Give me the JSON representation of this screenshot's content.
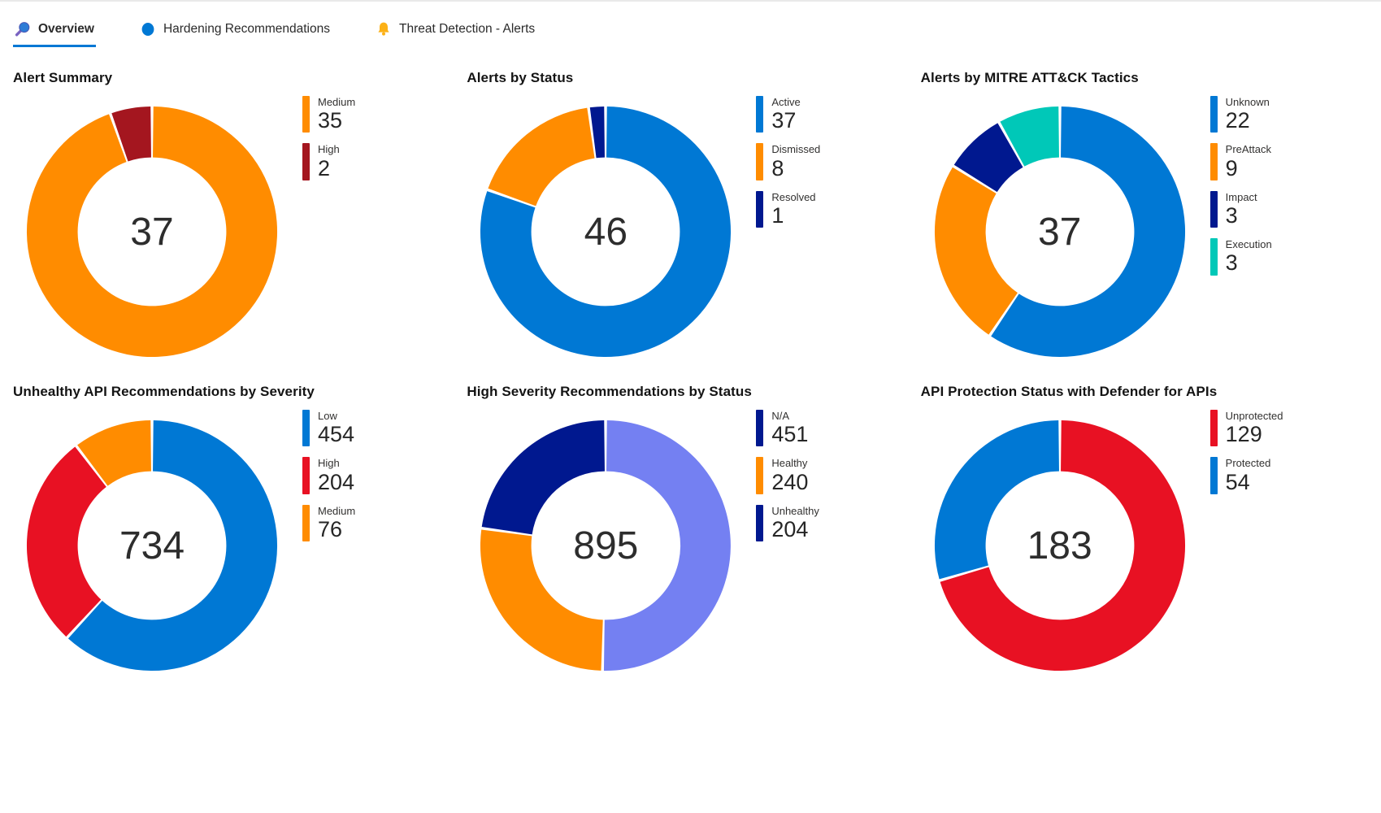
{
  "tabs": [
    {
      "label": "Overview",
      "icon": "search-icon",
      "active": true
    },
    {
      "label": "Hardening Recommendations",
      "icon": "circle-icon",
      "active": false
    },
    {
      "label": "Threat Detection - Alerts",
      "icon": "bell-icon",
      "active": false
    }
  ],
  "accent_colors": {
    "active_tab_underline": "#0078d4",
    "blue": "#0078d4",
    "orange": "#ff8c00",
    "dark_red": "#a4161f",
    "bright_red": "#e81123",
    "navy": "#00188f",
    "teal": "#00c8b8",
    "periwinkle": "#7480f2",
    "bell_yellow": "#fcb116"
  },
  "chart_data": [
    {
      "type": "pie",
      "title": "Alert Summary",
      "center_label": "37",
      "legend_position": "right",
      "series": [
        {
          "name": "Medium",
          "value": 35,
          "color": "#ff8c00"
        },
        {
          "name": "High",
          "value": 2,
          "color": "#a4161f"
        }
      ]
    },
    {
      "type": "pie",
      "title": "Alerts by Status",
      "center_label": "46",
      "legend_position": "right",
      "series": [
        {
          "name": "Active",
          "value": 37,
          "color": "#0078d4"
        },
        {
          "name": "Dismissed",
          "value": 8,
          "color": "#ff8c00"
        },
        {
          "name": "Resolved",
          "value": 1,
          "color": "#00188f"
        }
      ]
    },
    {
      "type": "pie",
      "title": "Alerts by MITRE ATT&CK Tactics",
      "center_label": "37",
      "legend_position": "right",
      "series": [
        {
          "name": "Unknown",
          "value": 22,
          "color": "#0078d4"
        },
        {
          "name": "PreAttack",
          "value": 9,
          "color": "#ff8c00"
        },
        {
          "name": "Impact",
          "value": 3,
          "color": "#00188f"
        },
        {
          "name": "Execution",
          "value": 3,
          "color": "#00c8b8"
        }
      ]
    },
    {
      "type": "pie",
      "title": "Unhealthy API Recommendations by Severity",
      "center_label": "734",
      "legend_position": "right",
      "series": [
        {
          "name": "Low",
          "value": 454,
          "color": "#0078d4"
        },
        {
          "name": "High",
          "value": 204,
          "color": "#e81123"
        },
        {
          "name": "Medium",
          "value": 76,
          "color": "#ff8c00"
        }
      ]
    },
    {
      "type": "pie",
      "title": "High Severity Recommendations by Status",
      "center_label": "895",
      "legend_position": "right",
      "series": [
        {
          "name": "N/A",
          "value": 451,
          "color": "#7480f2",
          "chip_color": "#00188f"
        },
        {
          "name": "Healthy",
          "value": 240,
          "color": "#ff8c00"
        },
        {
          "name": "Unhealthy",
          "value": 204,
          "color": "#00188f"
        }
      ]
    },
    {
      "type": "pie",
      "title": "API Protection Status with Defender for APIs",
      "center_label": "183",
      "legend_position": "right",
      "series": [
        {
          "name": "Unprotected",
          "value": 129,
          "color": "#e81123"
        },
        {
          "name": "Protected",
          "value": 54,
          "color": "#0078d4"
        }
      ]
    }
  ]
}
